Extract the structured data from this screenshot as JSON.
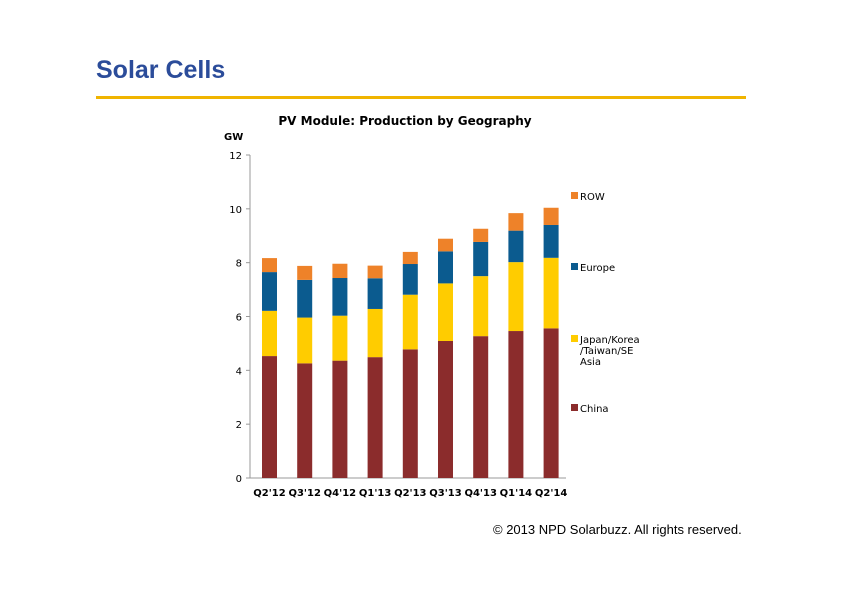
{
  "slide": {
    "title": "Solar Cells",
    "copyright": "© 2013 NPD Solarbuzz. All rights reserved."
  },
  "chart_data": {
    "type": "bar",
    "stacked": true,
    "title": "PV Module: Production by Geography",
    "ylabel": "GW",
    "xlabel": "",
    "ylim": [
      0,
      12
    ],
    "yticks": [
      0,
      2,
      4,
      6,
      8,
      10,
      12
    ],
    "grid": false,
    "legend_position": "right",
    "categories": [
      "Q2'12",
      "Q3'12",
      "Q4'12",
      "Q1'13",
      "Q2'13",
      "Q3'13",
      "Q4'13",
      "Q1'14",
      "Q2'14"
    ],
    "series": [
      {
        "name": "China",
        "color": "#8B2C2C",
        "values": [
          4.53,
          4.26,
          4.36,
          4.49,
          4.78,
          5.09,
          5.27,
          5.46,
          5.56
        ]
      },
      {
        "name": "Japan/Korea /Taiwan/SE Asia",
        "color": "#FFCC00",
        "values": [
          1.68,
          1.7,
          1.67,
          1.79,
          2.03,
          2.14,
          2.23,
          2.56,
          2.62
        ]
      },
      {
        "name": "Europe",
        "color": "#0B5B8F",
        "values": [
          1.44,
          1.4,
          1.4,
          1.14,
          1.14,
          1.19,
          1.27,
          1.17,
          1.22
        ]
      },
      {
        "name": "ROW",
        "color": "#EE8229",
        "values": [
          0.52,
          0.52,
          0.53,
          0.47,
          0.45,
          0.47,
          0.49,
          0.65,
          0.64
        ]
      }
    ]
  }
}
